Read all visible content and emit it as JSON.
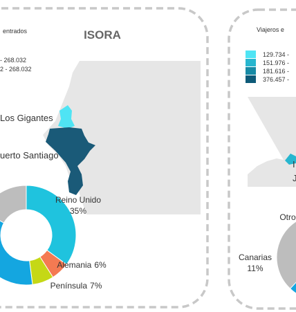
{
  "left": {
    "title": "ISORA",
    "legend_title": "entrados",
    "legend_items": [
      "- 268.032",
      "2 - 268.032"
    ],
    "map_labels": [
      "Los Gigantes",
      "uerto Santiago"
    ],
    "clipped_label": "7%"
  },
  "right": {
    "legend_title": "Viajeros e",
    "legend_items": [
      {
        "label": "129.734 -",
        "color": "#4fe4f4"
      },
      {
        "label": "151.976 -",
        "color": "#27b6cf"
      },
      {
        "label": "181.616 -",
        "color": "#178aa5"
      },
      {
        "label": "376.457 -",
        "color": "#0e5a78"
      }
    ],
    "map_labels": [
      "I",
      "J"
    ]
  },
  "chart_data": [
    {
      "type": "donut",
      "categories": [
        "Reino Unido",
        "Alemania",
        "Península",
        null,
        null
      ],
      "values": [
        35,
        6,
        7,
        35,
        17
      ],
      "value_labels": [
        "35%",
        "6%",
        "7%",
        null,
        null
      ],
      "colors": [
        "#1fc3de",
        "#f47a52",
        "#c5d816",
        "#14a6e0",
        "#bdbdbd"
      ]
    },
    {
      "type": "donut",
      "categories": [
        null,
        null,
        "Canarias",
        "Otro"
      ],
      "values": [
        45,
        6,
        11,
        38
      ],
      "value_labels": [
        null,
        null,
        "11%",
        null
      ],
      "colors": [
        "#1fc3de",
        "#c5d816",
        "#14a6e0",
        "#bdbdbd"
      ]
    }
  ]
}
